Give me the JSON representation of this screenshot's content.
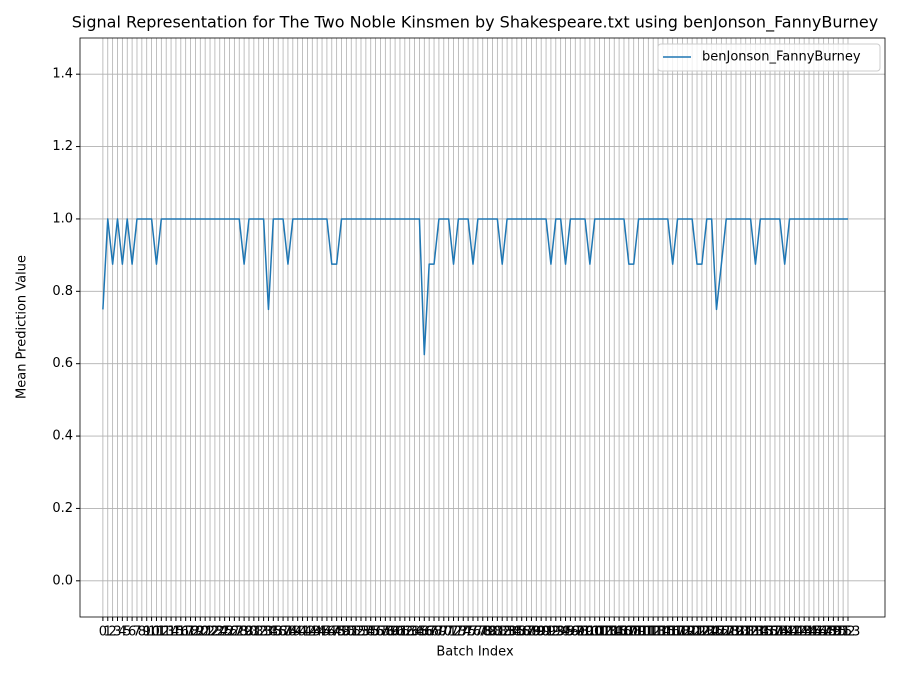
{
  "chart_data": {
    "type": "line",
    "title": "Signal Representation for The Two Noble Kinsmen by Shakespeare.txt using benJonson_FannyBurney",
    "xlabel": "Batch Index",
    "ylabel": "Mean Prediction Value",
    "x": [
      0,
      1,
      2,
      3,
      4,
      5,
      6,
      7,
      8,
      9,
      10,
      11,
      12,
      13,
      14,
      15,
      16,
      17,
      18,
      19,
      20,
      21,
      22,
      23,
      24,
      25,
      26,
      27,
      28,
      29,
      30,
      31,
      32,
      33,
      34,
      35,
      36,
      37,
      38,
      39,
      40,
      41,
      42,
      43,
      44,
      45,
      46,
      47,
      48,
      49,
      50,
      51,
      52,
      53,
      54,
      55,
      56,
      57,
      58,
      59,
      60,
      61,
      62,
      63,
      64,
      65,
      66,
      67,
      68,
      69,
      70,
      71,
      72,
      73,
      74,
      75,
      76,
      77,
      78,
      79,
      80,
      81,
      82,
      83,
      84,
      85,
      86,
      87,
      88,
      89,
      90,
      91,
      92,
      93,
      94,
      95,
      96,
      97,
      98,
      99,
      100,
      101,
      102,
      103,
      104,
      105,
      106,
      107,
      108,
      109,
      110,
      111,
      112,
      113,
      114,
      115,
      116,
      117,
      118,
      119,
      120,
      121,
      122,
      123,
      124,
      125,
      126,
      127,
      128,
      129,
      130,
      131,
      132,
      133,
      134,
      135,
      136,
      137,
      138,
      139,
      140,
      141,
      142,
      143,
      144,
      145,
      146,
      147,
      148,
      149,
      150,
      151,
      152,
      153
    ],
    "series": [
      {
        "name": "benJonson_FannyBurney",
        "color": "#1f77b4",
        "values": [
          0.75,
          1,
          0.875,
          1,
          0.875,
          1,
          0.875,
          1,
          1,
          1,
          1,
          0.875,
          1,
          1,
          1,
          1,
          1,
          1,
          1,
          1,
          1,
          1,
          1,
          1,
          1,
          1,
          1,
          1,
          1,
          0.875,
          1,
          1,
          1,
          1,
          0.75,
          1,
          1,
          1,
          0.875,
          1,
          1,
          1,
          1,
          1,
          1,
          1,
          1,
          0.875,
          0.875,
          1,
          1,
          1,
          1,
          1,
          1,
          1,
          1,
          1,
          1,
          1,
          1,
          1,
          1,
          1,
          1,
          1,
          0.625,
          0.875,
          0.875,
          1,
          1,
          1,
          0.875,
          1,
          1,
          1,
          0.875,
          1,
          1,
          1,
          1,
          1,
          0.875,
          1,
          1,
          1,
          1,
          1,
          1,
          1,
          1,
          1,
          0.875,
          1,
          1,
          0.875,
          1,
          1,
          1,
          1,
          0.875,
          1,
          1,
          1,
          1,
          1,
          1,
          1,
          0.875,
          0.875,
          1,
          1,
          1,
          1,
          1,
          1,
          1,
          0.875,
          1,
          1,
          1,
          1,
          0.875,
          0.875,
          1,
          1,
          0.75,
          0.875,
          1,
          1,
          1,
          1,
          1,
          1,
          0.875,
          1,
          1,
          1,
          1,
          1,
          0.875,
          1,
          1,
          1,
          1,
          1,
          1,
          1,
          1,
          1,
          1,
          1,
          1,
          1
        ]
      }
    ],
    "xlim": [
      -4.7,
      160.6
    ],
    "xticks": [
      0,
      1,
      2,
      3,
      4,
      5,
      6,
      7,
      8,
      9,
      10,
      11,
      12,
      13,
      14,
      15,
      16,
      17,
      18,
      19,
      20,
      21,
      22,
      23,
      24,
      25,
      26,
      27,
      28,
      29,
      30,
      31,
      32,
      33,
      34,
      35,
      36,
      37,
      38,
      39,
      40,
      41,
      42,
      43,
      44,
      45,
      46,
      47,
      48,
      49,
      50,
      51,
      52,
      53,
      54,
      55,
      56,
      57,
      58,
      59,
      60,
      61,
      62,
      63,
      64,
      65,
      66,
      67,
      68,
      69,
      70,
      71,
      72,
      73,
      74,
      75,
      76,
      77,
      78,
      79,
      80,
      81,
      82,
      83,
      84,
      85,
      86,
      87,
      88,
      89,
      90,
      91,
      92,
      93,
      94,
      95,
      96,
      97,
      98,
      99,
      100,
      101,
      102,
      103,
      104,
      105,
      106,
      107,
      108,
      109,
      110,
      111,
      112,
      113,
      114,
      115,
      116,
      117,
      118,
      119,
      120,
      121,
      122,
      123,
      124,
      125,
      126,
      127,
      128,
      129,
      130,
      131,
      132,
      133,
      134,
      135,
      136,
      137,
      138,
      139,
      140,
      141,
      142,
      143,
      144,
      145,
      146,
      147,
      148,
      149,
      150,
      151,
      152,
      153
    ],
    "ylim": [
      -0.1,
      1.5
    ],
    "yticks": [
      0.0,
      0.2,
      0.4,
      0.6,
      0.8,
      1.0,
      1.2,
      1.4
    ],
    "ytick_labels": [
      "0.0",
      "0.2",
      "0.4",
      "0.6",
      "0.8",
      "1.0",
      "1.2",
      "1.4"
    ],
    "grid": true,
    "legend": "upper right"
  }
}
